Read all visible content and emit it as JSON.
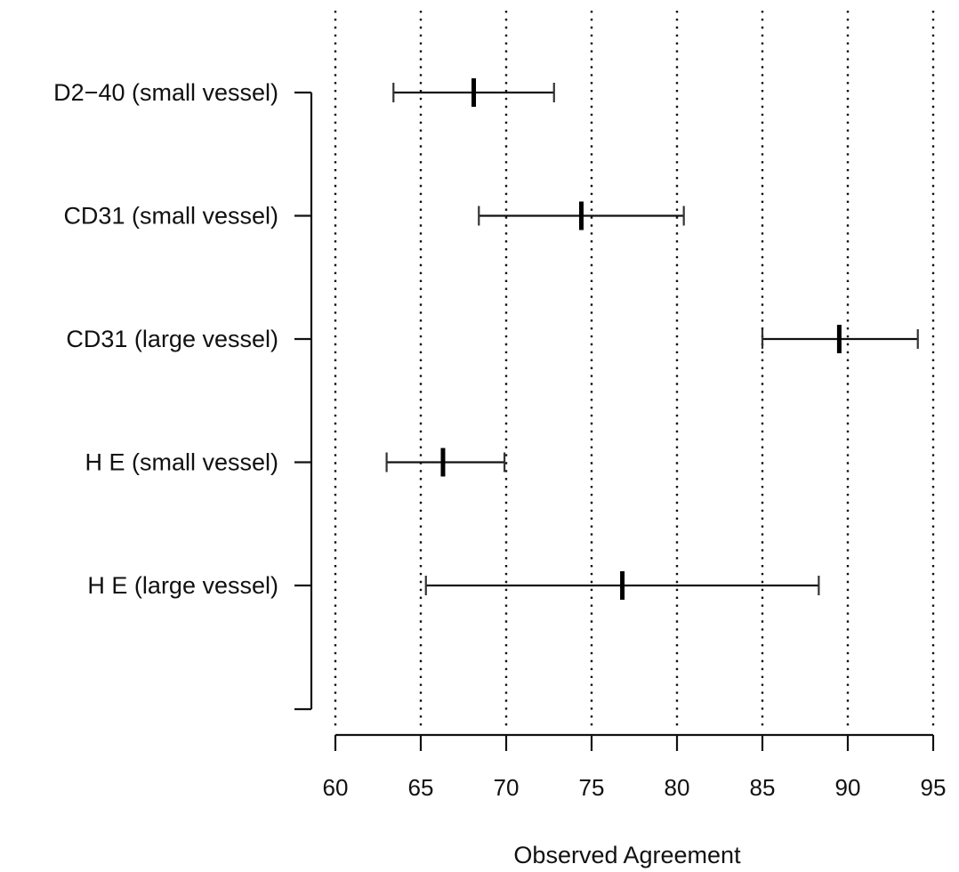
{
  "chart_data": {
    "type": "interval",
    "title": "",
    "xlabel": "Observed Agreement",
    "ylabel": "",
    "xlim": [
      60,
      95
    ],
    "xticks": [
      60,
      65,
      70,
      75,
      80,
      85,
      90,
      95
    ],
    "xtick_labels": [
      "60",
      "65",
      "70",
      "75",
      "80",
      "85",
      "90",
      "95"
    ],
    "grid": "vertical dotted lines at x ticks",
    "categories": [
      "D2−40 (small vessel)",
      "CD31 (small vessel)",
      "CD31 (large vessel)",
      "H E (small vessel)",
      "H E (large vessel)"
    ],
    "series": [
      {
        "estimate": [
          68.1,
          74.4,
          89.5,
          66.3,
          76.8
        ],
        "lower": [
          63.4,
          68.4,
          85.0,
          63.0,
          65.3
        ],
        "upper": [
          72.8,
          80.4,
          94.1,
          69.9,
          88.3
        ]
      }
    ]
  }
}
